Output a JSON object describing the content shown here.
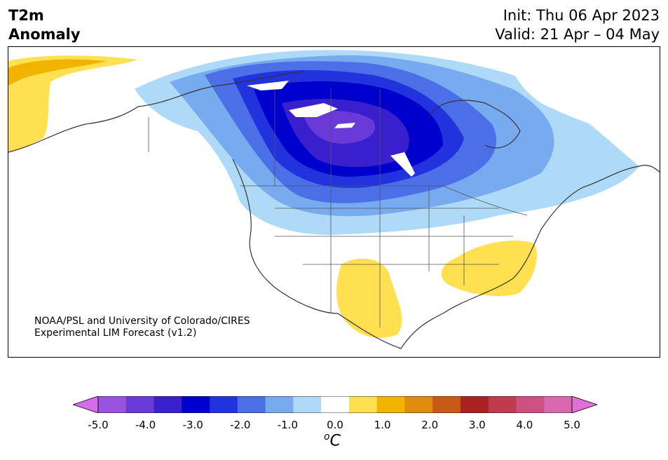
{
  "title": {
    "variable": "T2m",
    "subtitle": "Anomaly",
    "init": "Init: Thu 06 Apr 2023",
    "valid": "Valid: 21 Apr – 04 May"
  },
  "credit": {
    "line1": "NOAA/PSL and University of Colorado/CIRES",
    "line2": "Experimental LIM Forecast (v1.2)"
  },
  "colorbar": {
    "ticks": [
      "-5.0",
      "-4.0",
      "-3.0",
      "-2.0",
      "-1.0",
      "0.0",
      "1.0",
      "2.0",
      "3.0",
      "4.0",
      "5.0"
    ],
    "unit_base": "C",
    "unit_sup": "o",
    "colors": [
      "#d46ee8",
      "#9a52e0",
      "#6a3ad8",
      "#3a20cc",
      "#0000cc",
      "#2233dd",
      "#4a6fe6",
      "#78aaf0",
      "#aedaf8",
      "#ffffff",
      "#ffe050",
      "#f0b400",
      "#e08a10",
      "#c85a18",
      "#aa2222",
      "#c03a50",
      "#cc5080",
      "#d868b0",
      "#e070d8"
    ],
    "range": [
      -5.0,
      5.0
    ]
  }
}
